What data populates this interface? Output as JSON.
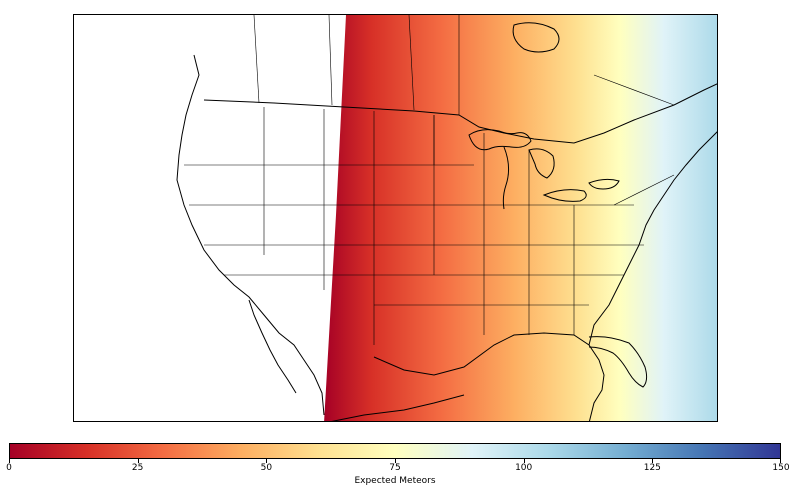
{
  "map": {
    "projection": "lambert-conformal",
    "extent": "North America (United States, southern Canada, northern Mexico)",
    "shaded_region": "east of the terminator line",
    "unshaded_region": "west of the terminator line (white)"
  },
  "colorbar": {
    "label": "Expected Meteors",
    "min": 0,
    "max": 150,
    "ticks": [
      {
        "value": 0,
        "label": "0"
      },
      {
        "value": 25,
        "label": "25"
      },
      {
        "value": 50,
        "label": "50"
      },
      {
        "value": 75,
        "label": "75"
      },
      {
        "value": 100,
        "label": "100"
      },
      {
        "value": 125,
        "label": "125"
      },
      {
        "value": 150,
        "label": "150"
      }
    ],
    "colormap": "RdYlBu",
    "colors": [
      "#a50026",
      "#d73027",
      "#f46d43",
      "#fdae61",
      "#fee090",
      "#ffffbf",
      "#e0f3f8",
      "#abd9e9",
      "#74add1",
      "#4575b4",
      "#313695"
    ]
  },
  "field": {
    "west_edge_value": 0,
    "east_edge_value": 100,
    "gradient_direction": "west-to-east"
  }
}
